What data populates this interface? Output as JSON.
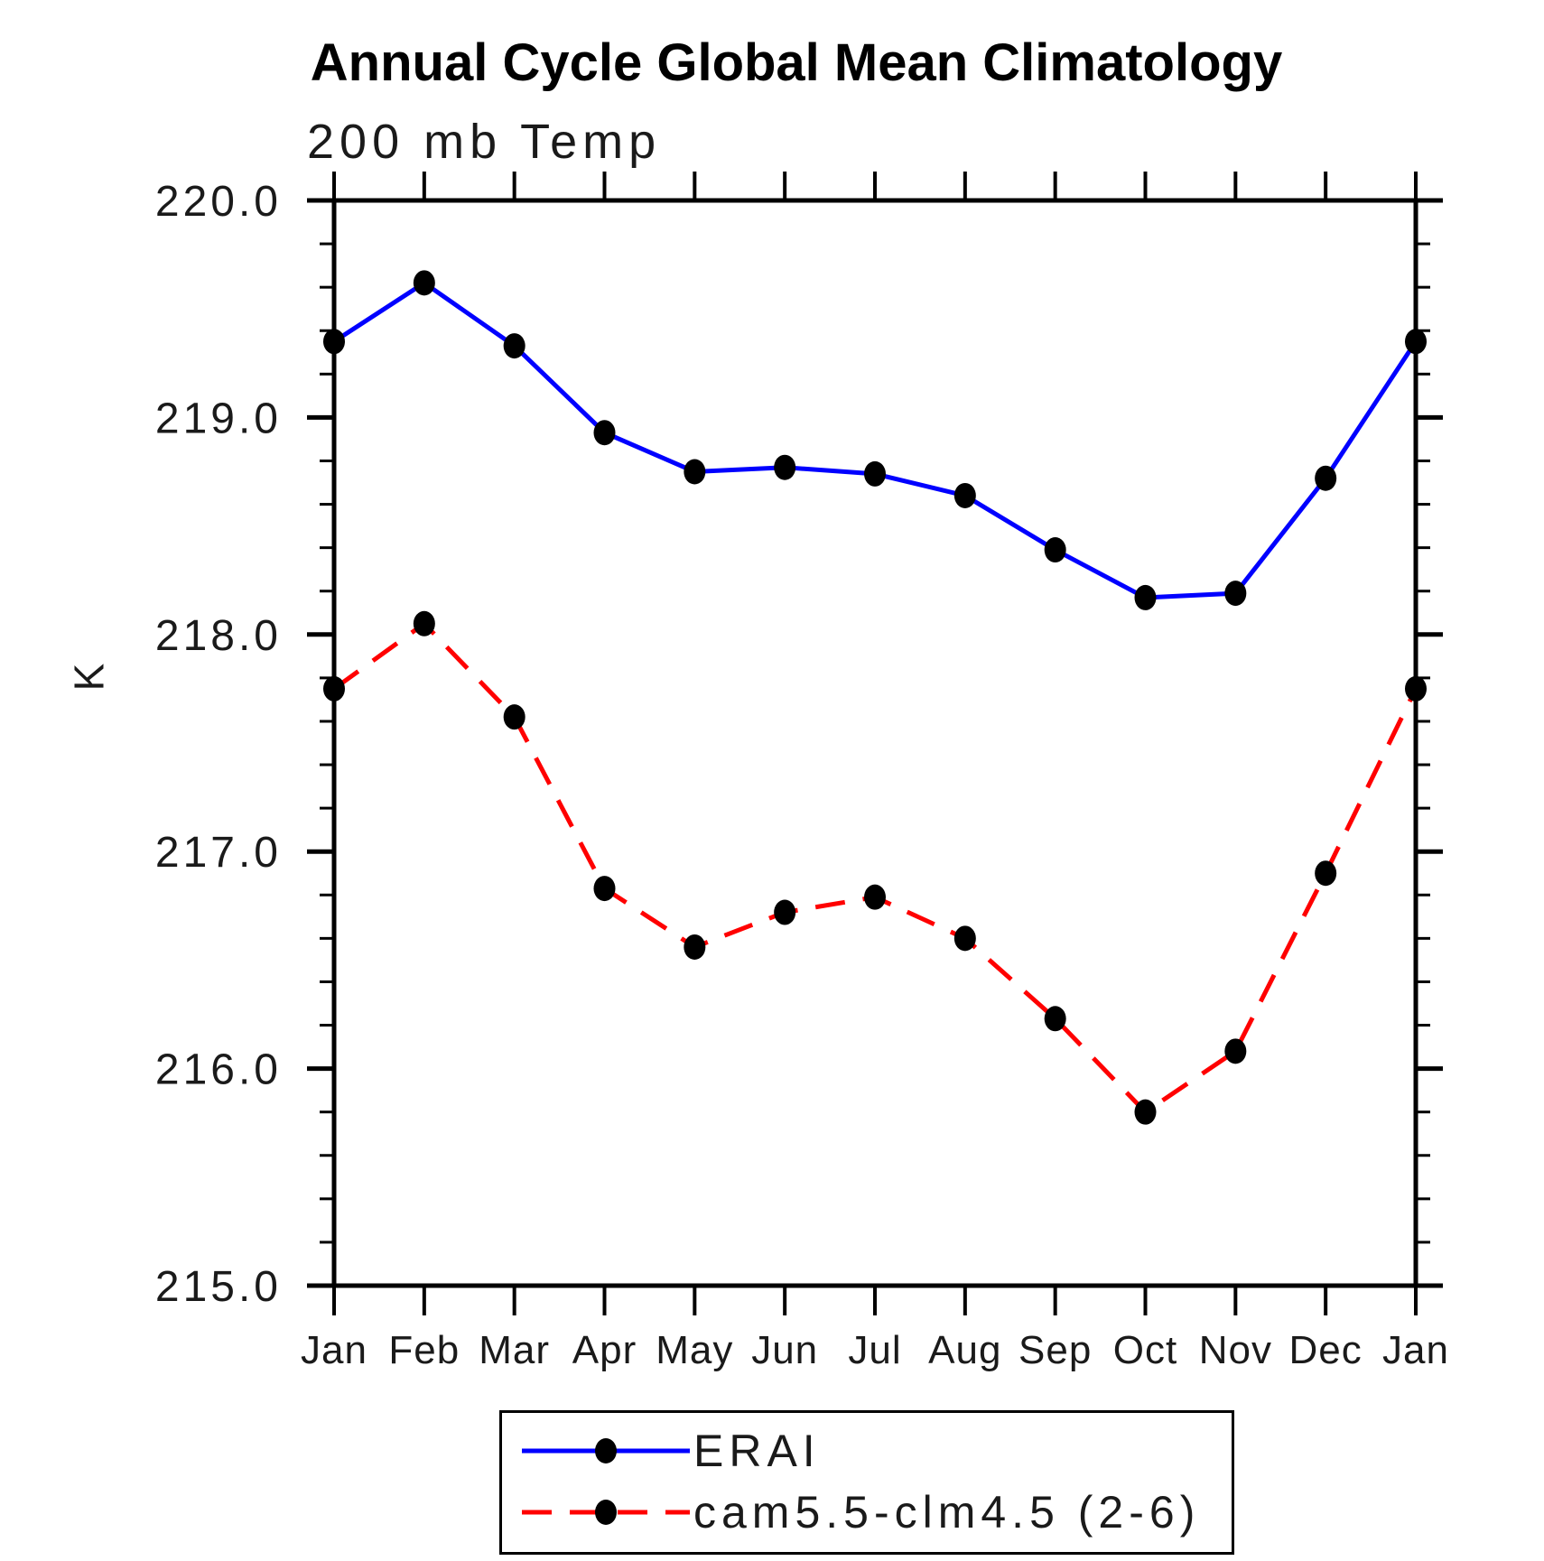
{
  "page": {
    "background": "#ffffff",
    "text_color": "#000000"
  },
  "chart_data": {
    "type": "line",
    "title": "Annual Cycle Global Mean Climatology",
    "subtitle": "200 mb Temp",
    "xlabel": "",
    "ylabel": "K",
    "categories": [
      "Jan",
      "Feb",
      "Mar",
      "Apr",
      "May",
      "Jun",
      "Jul",
      "Aug",
      "Sep",
      "Oct",
      "Nov",
      "Dec",
      "Jan"
    ],
    "ylim": [
      215.0,
      220.0
    ],
    "ytick_major": 1.0,
    "ytick_minor": 0.2,
    "ytick_labels": [
      "215.0",
      "216.0",
      "217.0",
      "218.0",
      "219.0",
      "220.0"
    ],
    "grid": false,
    "axis_color": "#000000",
    "legend_position": "bottom-boxed",
    "series": [
      {
        "name": "ERAI",
        "color": "#0000ff",
        "line_style": "solid",
        "marker": "filled-ellipse",
        "marker_color": "#000000",
        "values": [
          219.35,
          219.62,
          219.33,
          218.93,
          218.75,
          218.77,
          218.74,
          218.64,
          218.39,
          218.17,
          218.19,
          218.72,
          219.35
        ]
      },
      {
        "name": "cam5.5-clm4.5 (2-6)",
        "color": "#ff0000",
        "line_style": "dashed",
        "marker": "filled-ellipse",
        "marker_color": "#000000",
        "values": [
          217.75,
          218.05,
          217.62,
          216.83,
          216.56,
          216.72,
          216.79,
          216.6,
          216.23,
          215.8,
          216.08,
          216.9,
          217.75
        ]
      }
    ]
  }
}
